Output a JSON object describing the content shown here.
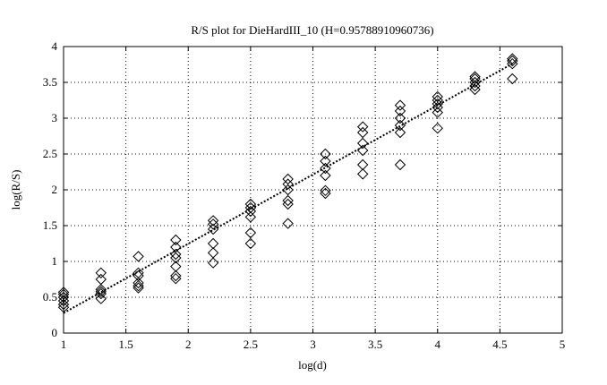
{
  "chart_data": {
    "type": "scatter",
    "title": "R/S plot for DieHardIII_10 (H=0.95788910960736)",
    "xlabel": "log(d)",
    "ylabel": "log(R/S)",
    "xlim": [
      1,
      5
    ],
    "ylim": [
      0,
      4
    ],
    "xticks": [
      "1",
      "1.5",
      "2",
      "2.5",
      "3",
      "3.5",
      "4",
      "4.5",
      "5"
    ],
    "yticks": [
      "0",
      "0.5",
      "1",
      "1.5",
      "2",
      "2.5",
      "3",
      "3.5",
      "4"
    ],
    "grid": true,
    "marker": "diamond",
    "series": [
      {
        "points": [
          [
            1.0,
            0.36
          ],
          [
            1.0,
            0.4
          ],
          [
            1.0,
            0.45
          ],
          [
            1.0,
            0.5
          ],
          [
            1.0,
            0.54
          ],
          [
            1.0,
            0.57
          ],
          [
            1.3,
            0.48
          ],
          [
            1.3,
            0.55
          ],
          [
            1.3,
            0.58
          ],
          [
            1.3,
            0.61
          ],
          [
            1.3,
            0.75
          ],
          [
            1.3,
            0.84
          ],
          [
            1.6,
            0.63
          ],
          [
            1.6,
            0.66
          ],
          [
            1.6,
            0.7
          ],
          [
            1.6,
            0.8
          ],
          [
            1.6,
            0.84
          ],
          [
            1.6,
            1.07
          ],
          [
            1.9,
            0.76
          ],
          [
            1.9,
            0.8
          ],
          [
            1.9,
            0.93
          ],
          [
            1.9,
            1.05
          ],
          [
            1.9,
            1.1
          ],
          [
            1.9,
            1.2
          ],
          [
            1.9,
            1.3
          ],
          [
            2.2,
            0.98
          ],
          [
            2.2,
            1.12
          ],
          [
            2.2,
            1.25
          ],
          [
            2.2,
            1.45
          ],
          [
            2.2,
            1.52
          ],
          [
            2.2,
            1.57
          ],
          [
            2.5,
            1.25
          ],
          [
            2.5,
            1.4
          ],
          [
            2.5,
            1.62
          ],
          [
            2.5,
            1.7
          ],
          [
            2.5,
            1.75
          ],
          [
            2.5,
            1.8
          ],
          [
            2.8,
            1.53
          ],
          [
            2.8,
            1.8
          ],
          [
            2.8,
            1.85
          ],
          [
            2.8,
            2.0
          ],
          [
            2.8,
            2.08
          ],
          [
            2.8,
            2.15
          ],
          [
            3.1,
            1.95
          ],
          [
            3.1,
            1.99
          ],
          [
            3.1,
            2.2
          ],
          [
            3.1,
            2.3
          ],
          [
            3.1,
            2.4
          ],
          [
            3.1,
            2.5
          ],
          [
            3.4,
            2.22
          ],
          [
            3.4,
            2.35
          ],
          [
            3.4,
            2.55
          ],
          [
            3.4,
            2.65
          ],
          [
            3.4,
            2.8
          ],
          [
            3.4,
            2.88
          ],
          [
            3.7,
            2.35
          ],
          [
            3.7,
            2.8
          ],
          [
            3.7,
            2.9
          ],
          [
            3.7,
            3.0
          ],
          [
            3.7,
            3.1
          ],
          [
            3.7,
            3.18
          ],
          [
            4.0,
            2.86
          ],
          [
            4.0,
            3.08
          ],
          [
            4.0,
            3.15
          ],
          [
            4.0,
            3.2
          ],
          [
            4.0,
            3.25
          ],
          [
            4.0,
            3.3
          ],
          [
            4.3,
            3.4
          ],
          [
            4.3,
            3.45
          ],
          [
            4.3,
            3.5
          ],
          [
            4.3,
            3.55
          ],
          [
            4.3,
            3.58
          ],
          [
            4.6,
            3.55
          ],
          [
            4.6,
            3.76
          ],
          [
            4.6,
            3.8
          ],
          [
            4.6,
            3.83
          ]
        ]
      }
    ],
    "fit_line": {
      "style": "dotted",
      "from": [
        1.0,
        0.28
      ],
      "to": [
        4.6,
        3.76
      ]
    }
  }
}
